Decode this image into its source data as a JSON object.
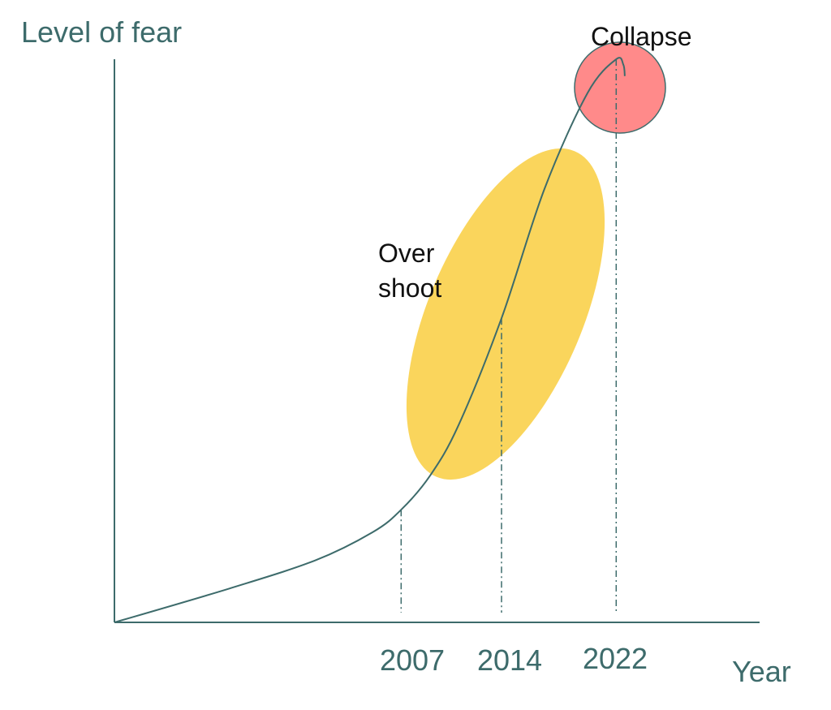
{
  "chart_data": {
    "type": "line",
    "title": "",
    "ylabel": "Level of fear",
    "xlabel": "Year",
    "x_ticks": [
      "2007",
      "2014",
      "2022"
    ],
    "series": [
      {
        "name": "",
        "points": [
          {
            "x": 1987,
            "y": 0
          },
          {
            "x": 1995,
            "y": 0.06
          },
          {
            "x": 2001,
            "y": 0.11
          },
          {
            "x": 2005,
            "y": 0.16
          },
          {
            "x": 2007,
            "y": 0.2
          },
          {
            "x": 2009,
            "y": 0.26
          },
          {
            "x": 2011,
            "y": 0.35
          },
          {
            "x": 2014,
            "y": 0.54
          },
          {
            "x": 2017,
            "y": 0.77
          },
          {
            "x": 2020,
            "y": 0.94
          },
          {
            "x": 2022,
            "y": 1.0
          },
          {
            "x": 2022.5,
            "y": 0.99
          },
          {
            "x": 2022.6,
            "y": 0.97
          }
        ]
      }
    ],
    "xlim": [
      1987,
      2032
    ],
    "ylim": [
      0,
      1.0
    ],
    "grid": false,
    "markers": [
      {
        "x": 2007,
        "y": 0.2
      },
      {
        "x": 2014,
        "y": 0.54
      },
      {
        "x": 2022,
        "y": 1.0
      }
    ],
    "annotations": [
      {
        "label": "Over",
        "label2": "shoot",
        "color": "#fad55c"
      },
      {
        "label": "Collapse",
        "color": "#ff8a8a"
      }
    ],
    "colors": {
      "axis": "#3d6b6b",
      "curve": "#3d6b6b"
    }
  }
}
